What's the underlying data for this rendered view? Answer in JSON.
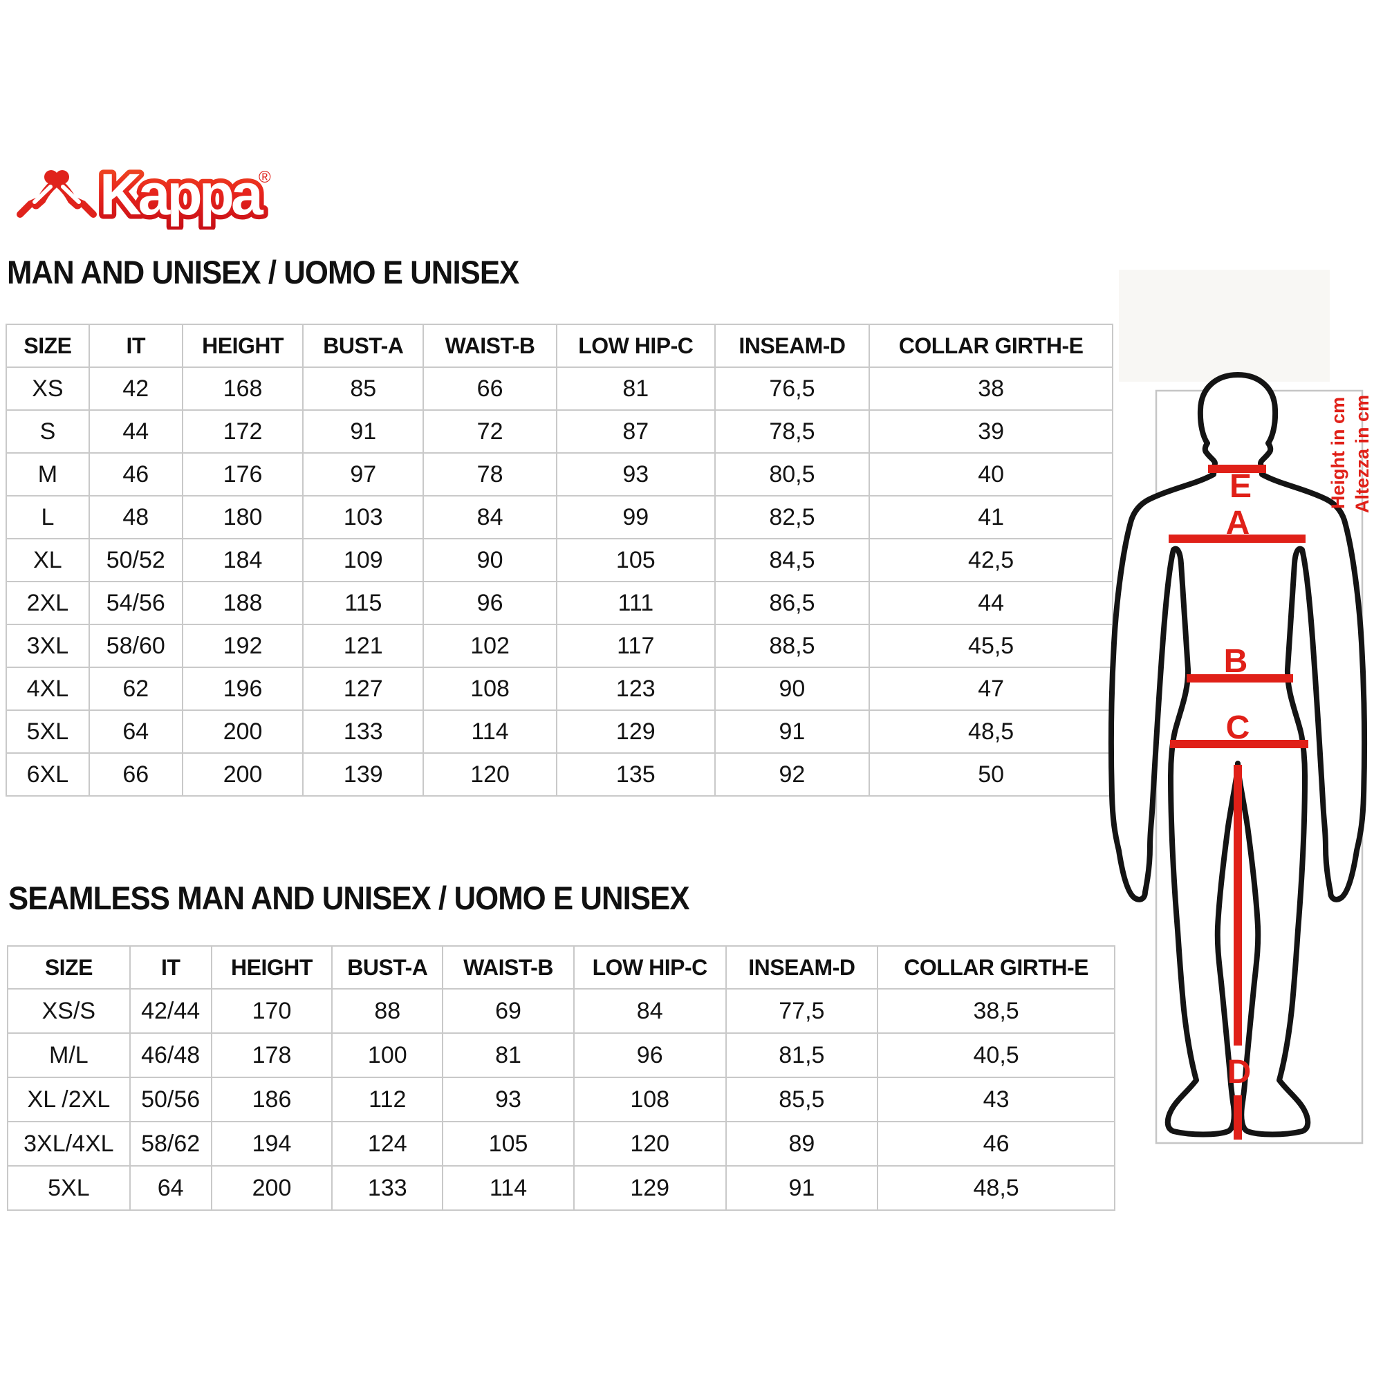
{
  "logo": {
    "brand": "Kappa",
    "registered": "®",
    "icon": "omini-back-to-back-figures"
  },
  "tables": [
    {
      "title": "MAN AND UNISEX / UOMO E UNISEX",
      "columns": [
        "SIZE",
        "IT",
        "HEIGHT",
        "BUST-A",
        "WAIST-B",
        "LOW HIP-C",
        "INSEAM-D",
        "COLLAR GIRTH-E"
      ],
      "rows": [
        [
          "XS",
          "42",
          "168",
          "85",
          "66",
          "81",
          "76,5",
          "38"
        ],
        [
          "S",
          "44",
          "172",
          "91",
          "72",
          "87",
          "78,5",
          "39"
        ],
        [
          "M",
          "46",
          "176",
          "97",
          "78",
          "93",
          "80,5",
          "40"
        ],
        [
          "L",
          "48",
          "180",
          "103",
          "84",
          "99",
          "82,5",
          "41"
        ],
        [
          "XL",
          "50/52",
          "184",
          "109",
          "90",
          "105",
          "84,5",
          "42,5"
        ],
        [
          "2XL",
          "54/56",
          "188",
          "115",
          "96",
          "111",
          "86,5",
          "44"
        ],
        [
          "3XL",
          "58/60",
          "192",
          "121",
          "102",
          "117",
          "88,5",
          "45,5"
        ],
        [
          "4XL",
          "62",
          "196",
          "127",
          "108",
          "123",
          "90",
          "47"
        ],
        [
          "5XL",
          "64",
          "200",
          "133",
          "114",
          "129",
          "91",
          "48,5"
        ],
        [
          "6XL",
          "66",
          "200",
          "139",
          "120",
          "135",
          "92",
          "50"
        ]
      ]
    },
    {
      "title": "SEAMLESS MAN AND UNISEX / UOMO E UNISEX",
      "columns": [
        "SIZE",
        "IT",
        "HEIGHT",
        "BUST-A",
        "WAIST-B",
        "LOW HIP-C",
        "INSEAM-D",
        "COLLAR GIRTH-E"
      ],
      "rows": [
        [
          "XS/S",
          "42/44",
          "170",
          "88",
          "69",
          "84",
          "77,5",
          "38,5"
        ],
        [
          "M/L",
          "46/48",
          "178",
          "100",
          "81",
          "96",
          "81,5",
          "40,5"
        ],
        [
          "XL /2XL",
          "50/56",
          "186",
          "112",
          "93",
          "108",
          "85,5",
          "43"
        ],
        [
          "3XL/4XL",
          "58/62",
          "194",
          "124",
          "105",
          "120",
          "89",
          "46"
        ],
        [
          "5XL",
          "64",
          "200",
          "133",
          "114",
          "129",
          "91",
          "48,5"
        ]
      ]
    }
  ],
  "figure": {
    "labels": {
      "e": "E",
      "a": "A",
      "b": "B",
      "c": "C",
      "d": "D"
    },
    "note_en": "Height in cm",
    "note_it": "Altezza in cm"
  },
  "colors": {
    "accent_red": "#e02018",
    "logo_red_top": "#f05123",
    "logo_red_bottom": "#c80f16",
    "table_border": "#c9c9c9",
    "text": "#141414",
    "figure_box_border": "#c6c6c6"
  }
}
